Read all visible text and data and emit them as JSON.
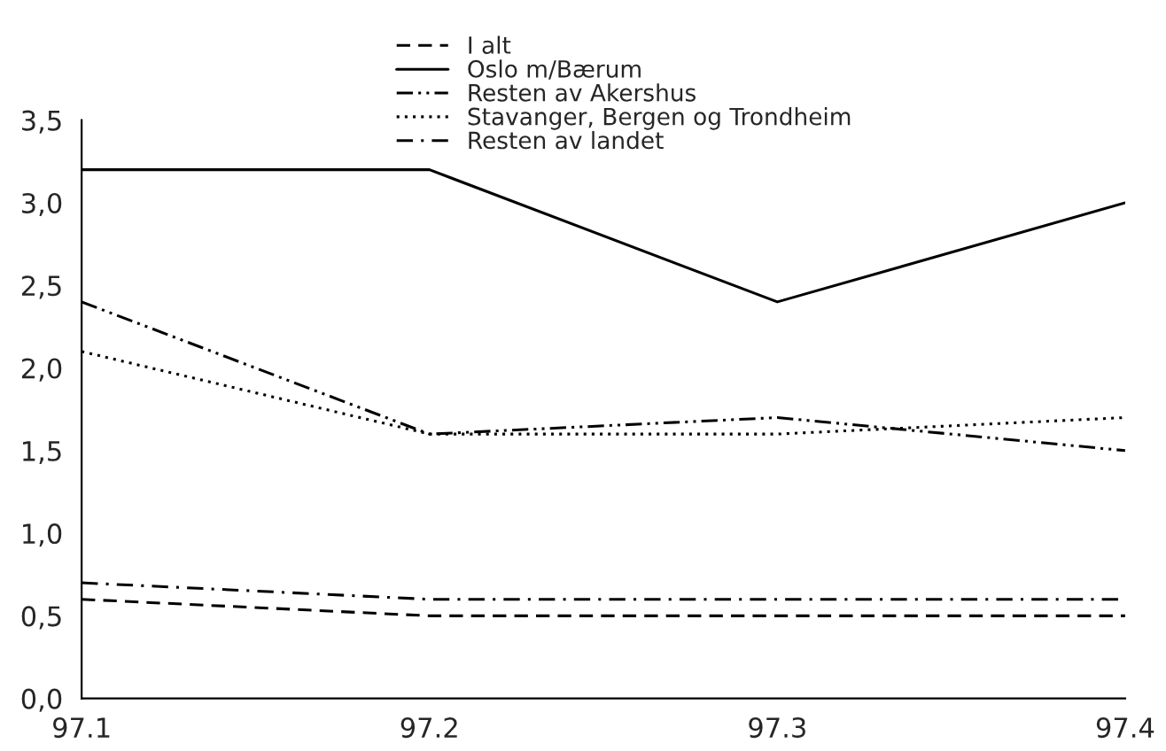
{
  "chart_data": {
    "type": "line",
    "categories": [
      "97.1",
      "97.2",
      "97.3",
      "97.4"
    ],
    "series": [
      {
        "name": "I alt",
        "color": "#000000",
        "line_style": "dashed",
        "values": [
          0.6,
          0.5,
          0.5,
          0.5
        ]
      },
      {
        "name": "Oslo m/Bærum",
        "color": "#000000",
        "line_style": "solid",
        "values": [
          3.2,
          3.2,
          2.4,
          3.0
        ]
      },
      {
        "name": "Resten av Akershus",
        "color": "#000000",
        "line_style": "dashdotdot",
        "values": [
          2.4,
          1.6,
          1.7,
          1.5
        ]
      },
      {
        "name": "Stavanger, Bergen og Trondheim",
        "color": "#000000",
        "line_style": "dotted",
        "values": [
          2.1,
          1.6,
          1.6,
          1.7
        ]
      },
      {
        "name": "Resten av landet",
        "color": "#000000",
        "line_style": "dashdot",
        "values": [
          0.7,
          0.6,
          0.6,
          0.6
        ]
      }
    ],
    "ylim": [
      0,
      3.5
    ],
    "yticks": [
      {
        "value": 0,
        "label": "0,0"
      },
      {
        "value": 0.5,
        "label": "0,5"
      },
      {
        "value": 1,
        "label": "1,0"
      },
      {
        "value": 1.5,
        "label": "1,5"
      },
      {
        "value": 2,
        "label": "2,0"
      },
      {
        "value": 2.5,
        "label": "2,5"
      },
      {
        "value": 3,
        "label": "3,0"
      },
      {
        "value": 3.5,
        "label": "3,5"
      }
    ],
    "grid": false,
    "legend": "top",
    "marker": "none"
  }
}
